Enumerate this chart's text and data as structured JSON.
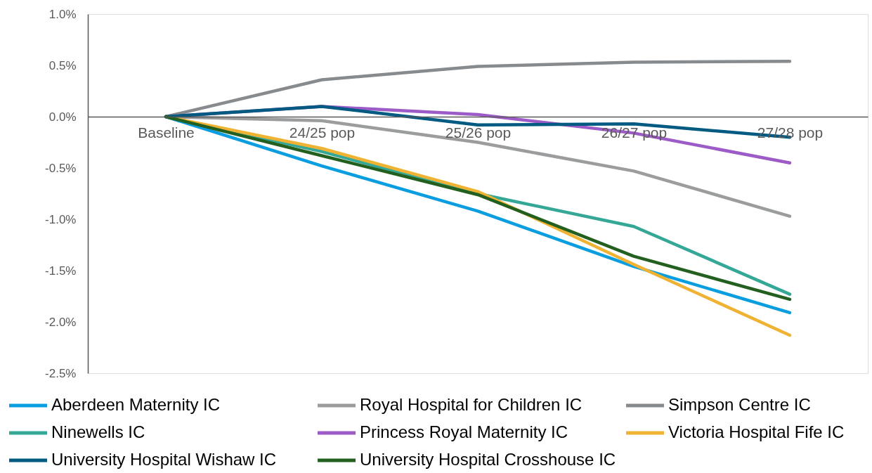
{
  "chart_data": {
    "type": "line",
    "categories": [
      "Baseline",
      "24/25 pop",
      "25/26 pop",
      "26/27 pop",
      "27/28 pop"
    ],
    "series": [
      {
        "name": "Aberdeen Maternity IC",
        "color": "#0a9ee0",
        "values": [
          0,
          -0.48,
          -0.92,
          -1.46,
          -1.91
        ]
      },
      {
        "name": "Royal Hospital for Children IC",
        "color": "#9a9c9e",
        "values": [
          0,
          -0.04,
          -0.25,
          -0.53,
          -0.97
        ]
      },
      {
        "name": "Simpson Centre IC",
        "color": "#888b8e",
        "values": [
          0,
          0.36,
          0.49,
          0.53,
          0.54
        ]
      },
      {
        "name": "Ninewells IC",
        "color": "#34a797",
        "values": [
          0,
          -0.34,
          -0.75,
          -1.07,
          -1.73
        ]
      },
      {
        "name": "Princess Royal Maternity IC",
        "color": "#9c5bc6",
        "values": [
          0,
          0.1,
          0.02,
          -0.16,
          -0.45
        ]
      },
      {
        "name": "Victoria Hospital Fife IC",
        "color": "#f0b232",
        "values": [
          0,
          -0.31,
          -0.73,
          -1.44,
          -2.13
        ]
      },
      {
        "name": "University Hospital Wishaw IC",
        "color": "#005a82",
        "values": [
          0,
          0.1,
          -0.08,
          -0.07,
          -0.2
        ]
      },
      {
        "name": "University Hospital Crosshouse IC",
        "color": "#235f1e",
        "values": [
          0,
          -0.38,
          -0.76,
          -1.36,
          -1.78
        ]
      }
    ],
    "ylim": [
      -2.5,
      1.0
    ],
    "yticks": [
      {
        "value": -2.5,
        "label": "-2.5%"
      },
      {
        "value": -2.0,
        "label": "-2.0%"
      },
      {
        "value": -1.5,
        "label": "-1.5%"
      },
      {
        "value": -1.0,
        "label": "-1.0%"
      },
      {
        "value": -0.5,
        "label": "-0.5%"
      },
      {
        "value": 0.0,
        "label": "0.0%"
      },
      {
        "value": 0.5,
        "label": "0.5%"
      },
      {
        "value": 1.0,
        "label": "1.0%"
      }
    ],
    "legend": "bottom"
  }
}
